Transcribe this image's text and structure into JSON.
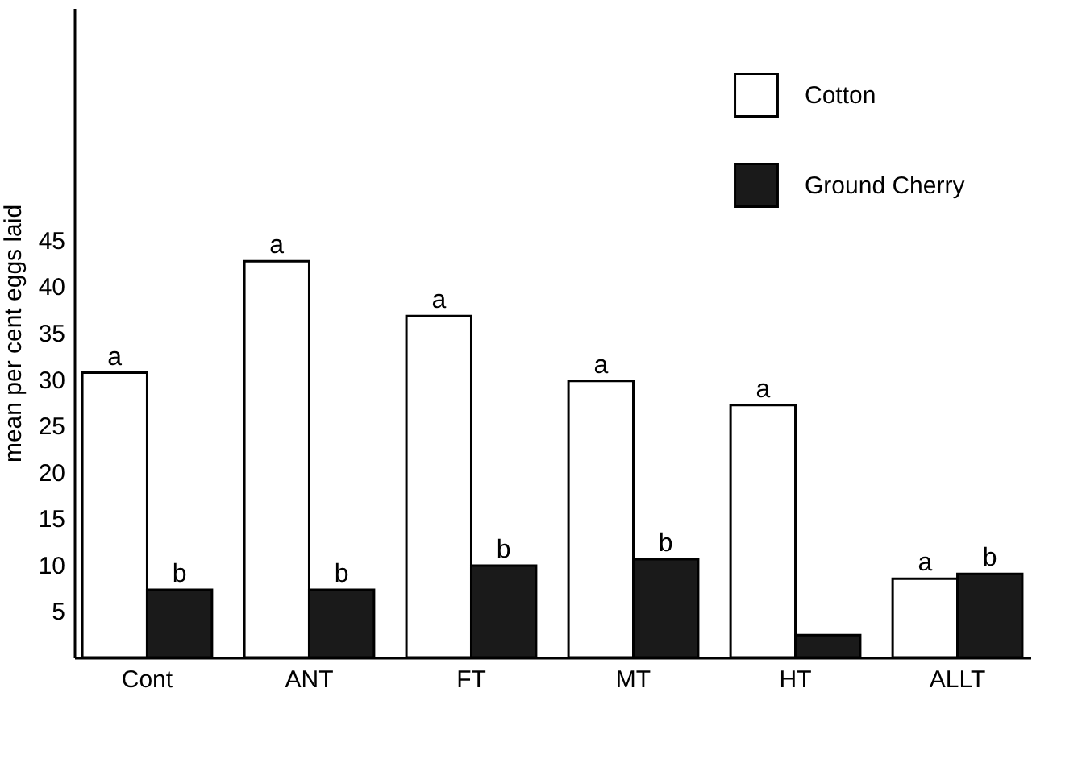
{
  "chart_data": {
    "type": "bar",
    "ylabel": "mean per cent eggs laid",
    "categories": [
      "Cont",
      "ANT",
      "FT",
      "MT",
      "HT",
      "ALLT"
    ],
    "series": [
      {
        "name": "Cotton",
        "color": "#ffffff",
        "values": [
          30.7,
          42.7,
          36.8,
          29.8,
          27.2,
          8.5
        ],
        "value_labels": [
          "a",
          "a",
          "a",
          "a",
          "a",
          "a"
        ]
      },
      {
        "name": "Ground Cherry",
        "color": "#1a1a1a",
        "values": [
          7.3,
          7.3,
          9.9,
          10.6,
          2.4,
          9.0
        ],
        "value_labels": [
          "b",
          "b",
          "b",
          "b",
          null,
          "b"
        ]
      }
    ],
    "ylim": [
      0,
      70
    ],
    "yticks": [
      5,
      10,
      15,
      20,
      25,
      30,
      35,
      40,
      45
    ],
    "grid": false,
    "legend": "top right"
  }
}
